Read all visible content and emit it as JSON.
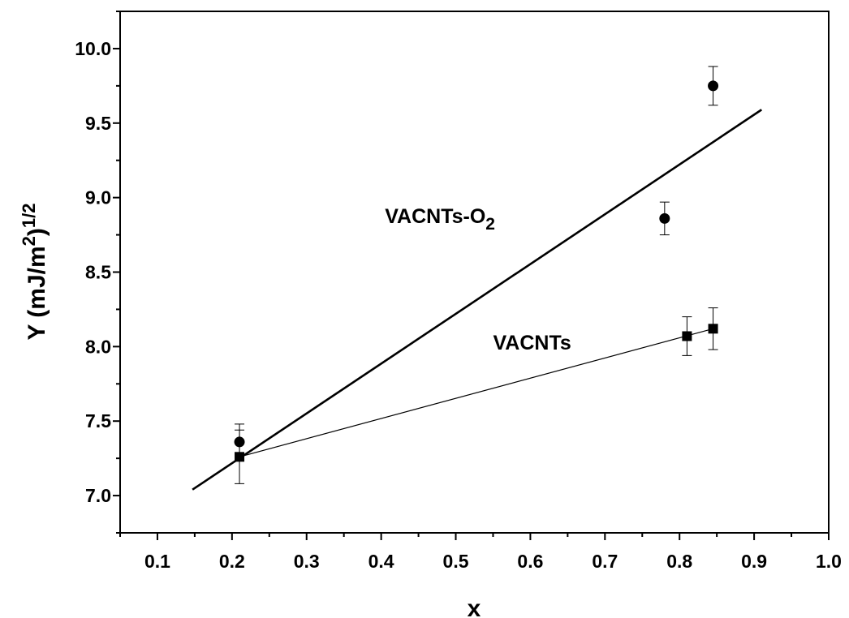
{
  "chart_data": {
    "type": "scatter",
    "xlabel": "x",
    "ylabel": {
      "main": "Y (mJ/m",
      "sup1": "2",
      "close": ")",
      "sup2": "1/2"
    },
    "xlim": [
      0.05,
      1.0
    ],
    "ylim": [
      6.75,
      10.25
    ],
    "x_ticks": [
      0.1,
      0.2,
      0.3,
      0.4,
      0.5,
      0.6,
      0.7,
      0.8,
      0.9,
      1.0
    ],
    "y_ticks": [
      7.0,
      7.5,
      8.0,
      8.5,
      9.0,
      9.5,
      10.0
    ],
    "x_tick_labels": [
      "0.1",
      "0.2",
      "0.3",
      "0.4",
      "0.5",
      "0.6",
      "0.7",
      "0.8",
      "0.9",
      "1.0"
    ],
    "y_tick_labels": [
      "7.0",
      "7.5",
      "8.0",
      "8.5",
      "9.0",
      "9.5",
      "10.0"
    ],
    "grid": false,
    "series": [
      {
        "marker": "circle",
        "points": [
          {
            "x": 0.21,
            "y": 7.36,
            "err": 0.12
          },
          {
            "x": 0.78,
            "y": 8.86,
            "err": 0.11
          },
          {
            "x": 0.845,
            "y": 9.75,
            "err": 0.13
          }
        ],
        "fit_line": {
          "x": [
            0.147,
            0.91
          ],
          "y": [
            7.04,
            9.59
          ]
        },
        "fit_width": "thick"
      },
      {
        "marker": "square",
        "points": [
          {
            "x": 0.21,
            "y": 7.26,
            "err": 0.18
          },
          {
            "x": 0.81,
            "y": 8.07,
            "err": 0.13
          },
          {
            "x": 0.845,
            "y": 8.12,
            "err": 0.14
          }
        ],
        "fit_line": {
          "x": [
            0.21,
            0.845
          ],
          "y": [
            7.26,
            8.12
          ]
        },
        "fit_width": "thin"
      }
    ],
    "annotations": [
      {
        "main": "VACNTs-O",
        "sub": "2",
        "x": 0.405,
        "y": 8.83
      },
      {
        "main": "VACNTs",
        "x": 0.55,
        "y": 7.98
      }
    ]
  }
}
